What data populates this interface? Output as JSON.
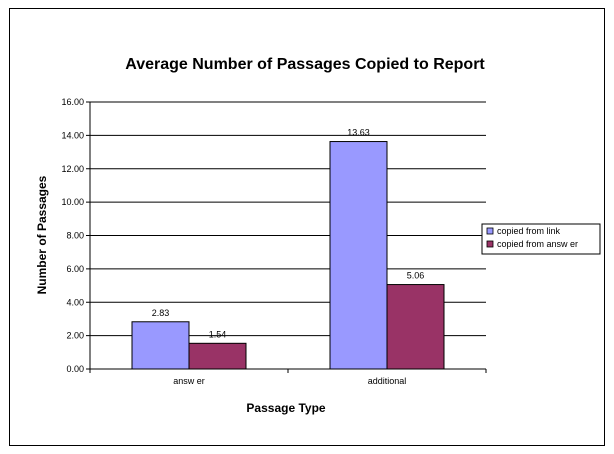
{
  "chart_data": {
    "type": "bar",
    "title": "Average Number of Passages Copied to Report",
    "xlabel": "Passage Type",
    "ylabel": "Number of Passages",
    "categories": [
      "answ er",
      "additional"
    ],
    "series": [
      {
        "name": "copied from link",
        "values": [
          2.83,
          13.63
        ],
        "labels": [
          "2.83",
          "13.63"
        ],
        "color": "#9999ff"
      },
      {
        "name": "copied from answ er",
        "values": [
          1.54,
          5.06
        ],
        "labels": [
          "1.54",
          "5.06"
        ],
        "color": "#993366"
      }
    ],
    "ylim": [
      0,
      16
    ],
    "yticks": [
      "0.00",
      "2.00",
      "4.00",
      "6.00",
      "8.00",
      "10.00",
      "12.00",
      "14.00",
      "16.00"
    ],
    "grid": true,
    "legend": "right"
  }
}
